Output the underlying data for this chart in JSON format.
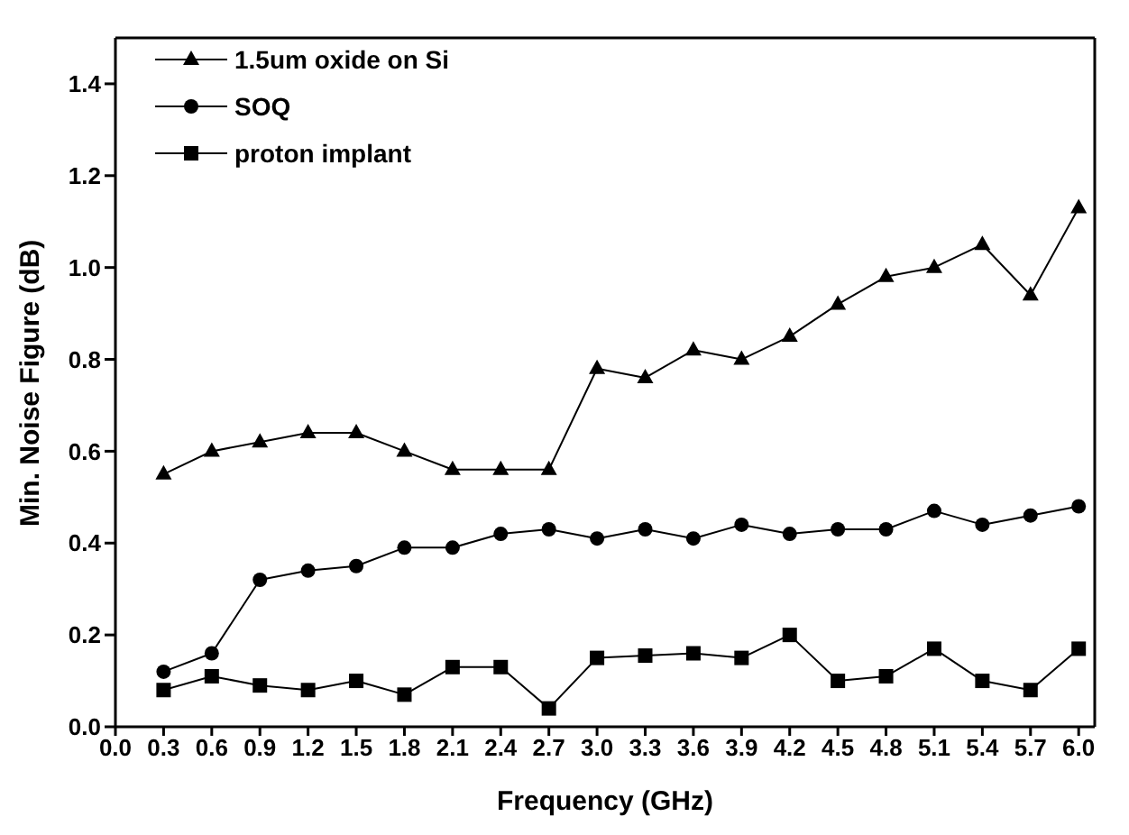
{
  "chart_data": {
    "type": "line",
    "xlabel": "Frequency (GHz)",
    "ylabel": "Min. Noise Figure (dB)",
    "x": [
      0.3,
      0.6,
      0.9,
      1.2,
      1.5,
      1.8,
      2.1,
      2.4,
      2.7,
      3.0,
      3.3,
      3.6,
      3.9,
      4.2,
      4.5,
      4.8,
      5.1,
      5.4,
      5.7,
      6.0
    ],
    "series": [
      {
        "name": "1.5um oxide on Si",
        "color": "#000000",
        "marker": "triangle",
        "values": [
          0.55,
          0.6,
          0.62,
          0.64,
          0.64,
          0.6,
          0.56,
          0.56,
          0.56,
          0.78,
          0.76,
          0.82,
          0.8,
          0.85,
          0.92,
          0.98,
          1.0,
          1.05,
          0.94,
          1.13
        ]
      },
      {
        "name": "SOQ",
        "color": "#000000",
        "marker": "circle",
        "values": [
          0.12,
          0.16,
          0.32,
          0.34,
          0.35,
          0.39,
          0.39,
          0.42,
          0.43,
          0.41,
          0.43,
          0.41,
          0.44,
          0.42,
          0.43,
          0.43,
          0.47,
          0.44,
          0.46,
          0.48
        ]
      },
      {
        "name": "proton implant",
        "color": "#000000",
        "marker": "square",
        "values": [
          0.08,
          0.11,
          0.09,
          0.08,
          0.1,
          0.07,
          0.13,
          0.13,
          0.04,
          0.15,
          0.155,
          0.16,
          0.15,
          0.2,
          0.1,
          0.11,
          0.17,
          0.1,
          0.08,
          0.17
        ]
      }
    ],
    "xlim": [
      0,
      6.1
    ],
    "xticks": [
      {
        "value": 0,
        "label": "0.0"
      },
      0.3,
      0.6,
      0.9,
      1.2,
      1.5,
      1.8,
      2.1,
      2.4,
      2.7,
      {
        "value": 3,
        "label": "3.0"
      },
      3.3,
      3.6,
      3.9,
      4.2,
      4.5,
      4.8,
      5.1,
      5.4,
      5.7,
      {
        "value": 6,
        "label": "6.0"
      }
    ],
    "ylim": [
      0,
      1.5
    ],
    "yticks": [
      {
        "value": 0,
        "label": "0.0"
      },
      0.2,
      0.4,
      0.6,
      0.8,
      {
        "value": 1,
        "label": "1.0"
      },
      1.2,
      1.4
    ],
    "legend": "top left",
    "grid": false,
    "line_style": "solid"
  }
}
